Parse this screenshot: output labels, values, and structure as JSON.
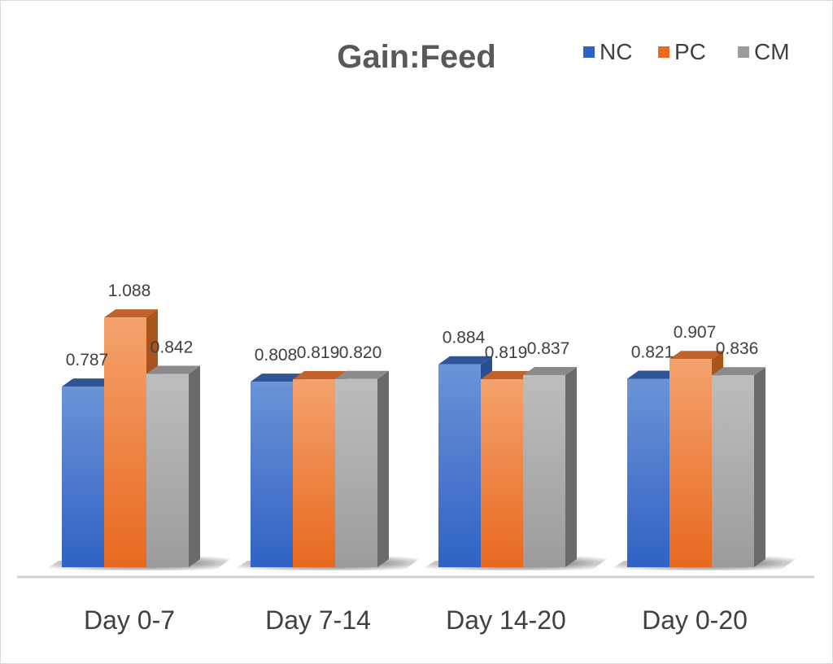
{
  "chart_data": {
    "type": "bar",
    "style": "3d-clustered-column",
    "title": "Gain:Feed",
    "categories": [
      "Day 0-7",
      "Day 7-14",
      "Day 14-20",
      "Day 0-20"
    ],
    "series": [
      {
        "name": "NC",
        "values": [
          0.787,
          0.808,
          0.884,
          0.821
        ],
        "labels": [
          "0.787",
          "0.808",
          "0.884",
          "0.821"
        ]
      },
      {
        "name": "PC",
        "values": [
          1.088,
          0.819,
          0.819,
          0.907
        ],
        "labels": [
          "1.088",
          "0.819",
          "0.819",
          "0.907"
        ]
      },
      {
        "name": "CM",
        "values": [
          0.842,
          0.82,
          0.837,
          0.836
        ],
        "labels": [
          "0.842",
          "0.820",
          "0.837",
          "0.836"
        ]
      }
    ],
    "colors": {
      "NC": {
        "top": "#6b93d6",
        "bottom": "#2f62c4",
        "side": "#2a4f91",
        "cap": "#2f5597"
      },
      "PC": {
        "top": "#f4a26d",
        "bottom": "#e8691f",
        "side": "#a9531d",
        "cap": "#c0622a"
      },
      "CM": {
        "top": "#bdbdbd",
        "bottom": "#9c9c9c",
        "side": "#6a6a6a",
        "cap": "#8a8a8a"
      }
    },
    "legend_position": "top-right",
    "data_labels": true,
    "gridlines": false,
    "ylim": [
      0,
      1.2
    ]
  }
}
